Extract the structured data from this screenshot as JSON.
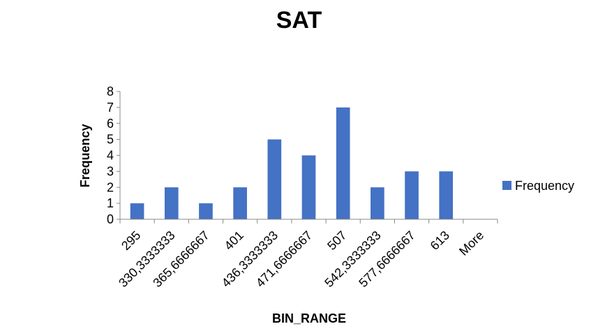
{
  "chart_data": {
    "type": "bar",
    "title": "SAT",
    "xlabel": "BIN_RANGE",
    "ylabel": "Frequency",
    "categories": [
      "295",
      "330,3333333",
      "365,6666667",
      "401",
      "436,3333333",
      "471,6666667",
      "507",
      "542,3333333",
      "577,6666667",
      "613",
      "More"
    ],
    "series": [
      {
        "name": "Frequency",
        "values": [
          1,
          2,
          1,
          2,
          5,
          4,
          7,
          2,
          3,
          3,
          0
        ]
      }
    ],
    "ylim": [
      0,
      8
    ],
    "yticks": [
      "0",
      "1",
      "2",
      "3",
      "4",
      "5",
      "6",
      "7",
      "8"
    ],
    "grid": false,
    "legend": "right",
    "colors": {
      "bar": "#4472C4",
      "axis": "#888888"
    }
  }
}
